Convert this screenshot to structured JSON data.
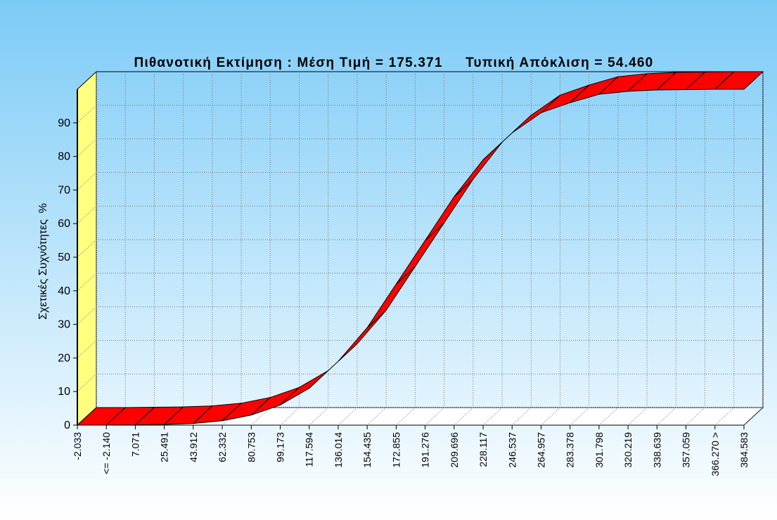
{
  "chart_data": {
    "type": "line",
    "title": "Πιθανοτική Εκτίμηση : Μέση Τιμή = 175.371     Τυπική Απόκλιση = 54.460",
    "y_label": "Σχετικές Συχνότητες  %",
    "categories": [
      "-2.033",
      "<= -2.140",
      "7.071",
      "25.491",
      "43.912",
      "62.332",
      "80.753",
      "99.173",
      "117.594",
      "136.014",
      "154.435",
      "172.855",
      "191.276",
      "209.696",
      "228.117",
      "246.537",
      "264.957",
      "283.378",
      "301.798",
      "320.219",
      "338.639",
      "357.059",
      "366.270 >",
      "384.583"
    ],
    "values": [
      0,
      0,
      0.1,
      0.2,
      0.5,
      1.3,
      3,
      6,
      11,
      19,
      29,
      42,
      55,
      68,
      79,
      87,
      93,
      96,
      98.5,
      99.4,
      99.8,
      99.9,
      100,
      100
    ],
    "color": "#ff0000",
    "ylim": [
      0,
      100
    ],
    "yticks": [
      0,
      10,
      20,
      30,
      40,
      50,
      60,
      70,
      80,
      90
    ],
    "grid": true
  }
}
